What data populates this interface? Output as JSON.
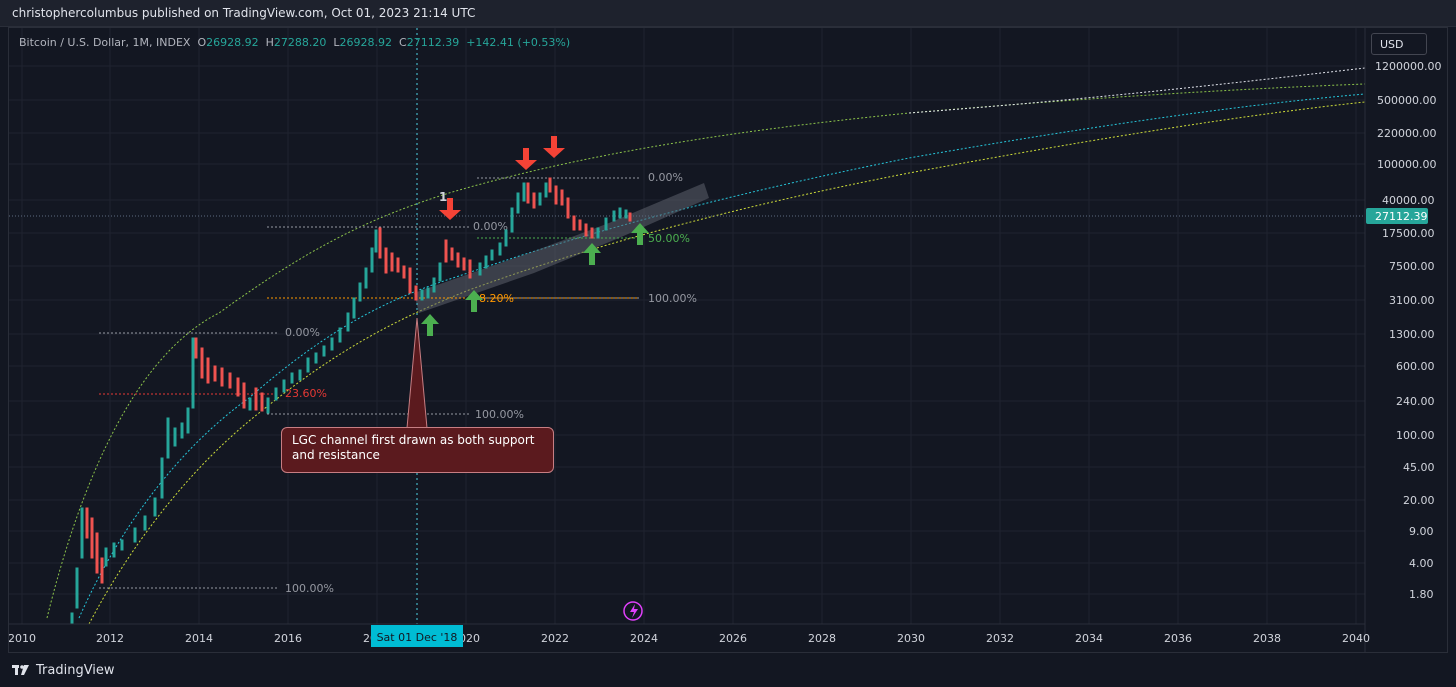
{
  "header": {
    "published": "christophercolumbus published on TradingView.com, Oct 01, 2023 21:14 UTC"
  },
  "legend": {
    "symbol": "Bitcoin / U.S. Dollar, 1M, INDEX",
    "o_label": "O",
    "o_value": "26928.92",
    "h_label": "H",
    "h_value": "27288.20",
    "l_label": "L",
    "l_value": "26928.92",
    "c_label": "C",
    "c_value": "27112.39",
    "change": "+142.41 (+0.53%)"
  },
  "currency_button": "USD",
  "price_axis": {
    "ticks": [
      "1200000.00",
      "500000.00",
      "220000.00",
      "100000.00",
      "40000.00",
      "17500.00",
      "7500.00",
      "3100.00",
      "1300.00",
      "600.00",
      "240.00",
      "100.00",
      "45.00",
      "20.00",
      "9.00",
      "4.00",
      "1.80"
    ],
    "current_price": "27112.39"
  },
  "time_axis": {
    "ticks": [
      "2010",
      "2012",
      "2014",
      "2016",
      "2018",
      "2020",
      "2022",
      "2024",
      "2026",
      "2028",
      "2030",
      "2032",
      "2034",
      "2036",
      "2038",
      "2040"
    ],
    "crosshair_label": "Sat 01 Dec '18"
  },
  "annotations": {
    "fib_2011_top": "0.00%",
    "fib_2011_bottom": "100.00%",
    "fib_2011_mid": "23.60%",
    "fib_2014_top": "0.00%",
    "fib_2014_bottom": "100.00%",
    "fib_2018_top": "0.00%",
    "fib_2018_mid": "8.20%",
    "fib_2021_top": "0.00%",
    "fib_2021_mid": "50.00%",
    "fib_2021_bottom": "100.00%",
    "wave_label": "1",
    "callout_text": "LGC channel first drawn as both support and resistance"
  },
  "brand": {
    "name": "TradingView"
  },
  "colors": {
    "background": "#131722",
    "up": "#26a69a",
    "down": "#ef5350",
    "accent_price": "#26a69a",
    "crosshair_label_bg": "#00bcd4"
  }
}
